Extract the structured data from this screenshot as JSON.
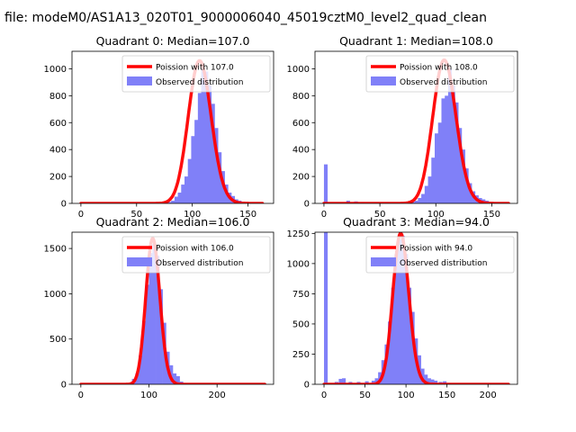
{
  "suptitle": "a file: modeM0/AS1A13_020T01_9000006040_45019cztM0_level2_quad_clean",
  "colors": {
    "histogram": "#8080f8",
    "poisson_line": "#ff0000",
    "poisson_line_overlap": "#f08080"
  },
  "chart_data": [
    {
      "type": "bar",
      "title": "Quadrant 0: Median=107.0",
      "xlim": [
        -8,
        173
      ],
      "ylim": [
        0,
        1130
      ],
      "xticks": [
        0,
        50,
        100,
        150
      ],
      "yticks": [
        0,
        200,
        400,
        600,
        800,
        1000
      ],
      "legend_position": "top-right",
      "poisson_label": "Poission with 107.0",
      "hist_label": "Observed distribution",
      "poisson_mean": 107.0,
      "poisson_peak": 1060,
      "poisson_x_range": [
        0,
        163
      ],
      "bin_width": 3.3,
      "bins": [
        [
          75,
          5
        ],
        [
          78,
          10
        ],
        [
          81,
          20
        ],
        [
          84,
          50
        ],
        [
          87,
          80
        ],
        [
          90,
          140
        ],
        [
          93,
          200
        ],
        [
          96,
          330
        ],
        [
          99,
          500
        ],
        [
          102,
          620
        ],
        [
          105,
          820
        ],
        [
          108,
          1000
        ],
        [
          111,
          980
        ],
        [
          114,
          880
        ],
        [
          117,
          740
        ],
        [
          120,
          560
        ],
        [
          123,
          380
        ],
        [
          126,
          240
        ],
        [
          129,
          140
        ],
        [
          132,
          80
        ],
        [
          135,
          55
        ],
        [
          138,
          30
        ],
        [
          141,
          20
        ],
        [
          144,
          10
        ]
      ]
    },
    {
      "type": "bar",
      "title": "Quadrant 1: Median=108.0",
      "xlim": [
        -8,
        173
      ],
      "ylim": [
        0,
        1130
      ],
      "xticks": [
        0,
        50,
        100,
        150
      ],
      "yticks": [
        0,
        200,
        400,
        600,
        800,
        1000
      ],
      "legend_position": "top-right",
      "poisson_label": "Poission with 108.0",
      "hist_label": "Observed distribution",
      "poisson_mean": 108.0,
      "poisson_peak": 1065,
      "poisson_x_range": [
        0,
        165
      ],
      "bin_width": 3.3,
      "bins": [
        [
          0,
          290
        ],
        [
          20,
          20
        ],
        [
          27,
          15
        ],
        [
          33,
          5
        ],
        [
          45,
          5
        ],
        [
          55,
          5
        ],
        [
          70,
          5
        ],
        [
          78,
          10
        ],
        [
          81,
          20
        ],
        [
          84,
          40
        ],
        [
          87,
          70
        ],
        [
          90,
          130
        ],
        [
          93,
          200
        ],
        [
          96,
          340
        ],
        [
          99,
          520
        ],
        [
          102,
          600
        ],
        [
          105,
          780
        ],
        [
          108,
          800
        ],
        [
          111,
          1000
        ],
        [
          114,
          880
        ],
        [
          117,
          750
        ],
        [
          120,
          560
        ],
        [
          123,
          400
        ],
        [
          126,
          260
        ],
        [
          129,
          150
        ],
        [
          132,
          90
        ],
        [
          135,
          60
        ],
        [
          138,
          40
        ],
        [
          141,
          30
        ],
        [
          144,
          20
        ],
        [
          147,
          10
        ],
        [
          150,
          5
        ]
      ]
    },
    {
      "type": "bar",
      "title": "Quadrant 2: Median=106.0",
      "xlim": [
        -13,
        283
      ],
      "ylim": [
        0,
        1680
      ],
      "xticks": [
        0,
        100,
        200
      ],
      "yticks": [
        0,
        500,
        1000,
        1500
      ],
      "legend_position": "top-right",
      "poisson_label": "Poission with 106.0",
      "hist_label": "Observed distribution",
      "poisson_mean": 106.0,
      "poisson_peak": 1610,
      "poisson_x_range": [
        0,
        270
      ],
      "bin_width": 5.4,
      "bins": [
        [
          70,
          10
        ],
        [
          75,
          60
        ],
        [
          80,
          120
        ],
        [
          85,
          320
        ],
        [
          90,
          700
        ],
        [
          95,
          1100
        ],
        [
          100,
          1450
        ],
        [
          105,
          1550
        ],
        [
          110,
          1420
        ],
        [
          115,
          1050
        ],
        [
          120,
          680
        ],
        [
          125,
          360
        ],
        [
          130,
          210
        ],
        [
          135,
          120
        ],
        [
          140,
          90
        ],
        [
          145,
          30
        ],
        [
          150,
          10
        ]
      ]
    },
    {
      "type": "bar",
      "title": "Quadrant 3: Median=94.0",
      "xlim": [
        -11,
        236
      ],
      "ylim": [
        0,
        1260
      ],
      "xticks": [
        0,
        50,
        100,
        150,
        200
      ],
      "yticks": [
        0,
        250,
        500,
        750,
        1000,
        1250
      ],
      "legend_position": "top-right",
      "poisson_label": "Poission with 94.0",
      "hist_label": "Observed distribution",
      "poisson_mean": 94.0,
      "poisson_peak": 1250,
      "poisson_x_range": [
        0,
        225
      ],
      "bin_width": 4.5,
      "bins": [
        [
          0,
          1260
        ],
        [
          13,
          20
        ],
        [
          18,
          45
        ],
        [
          22,
          50
        ],
        [
          30,
          20
        ],
        [
          40,
          20
        ],
        [
          50,
          25
        ],
        [
          58,
          30
        ],
        [
          62,
          50
        ],
        [
          66,
          100
        ],
        [
          70,
          200
        ],
        [
          74,
          330
        ],
        [
          78,
          520
        ],
        [
          82,
          800
        ],
        [
          86,
          1080
        ],
        [
          90,
          1200
        ],
        [
          94,
          1230
        ],
        [
          98,
          1080
        ],
        [
          102,
          800
        ],
        [
          106,
          600
        ],
        [
          110,
          380
        ],
        [
          114,
          240
        ],
        [
          118,
          130
        ],
        [
          122,
          80
        ],
        [
          126,
          50
        ],
        [
          130,
          40
        ],
        [
          134,
          30
        ],
        [
          140,
          20
        ],
        [
          145,
          25
        ],
        [
          150,
          10
        ],
        [
          160,
          5
        ]
      ]
    }
  ]
}
